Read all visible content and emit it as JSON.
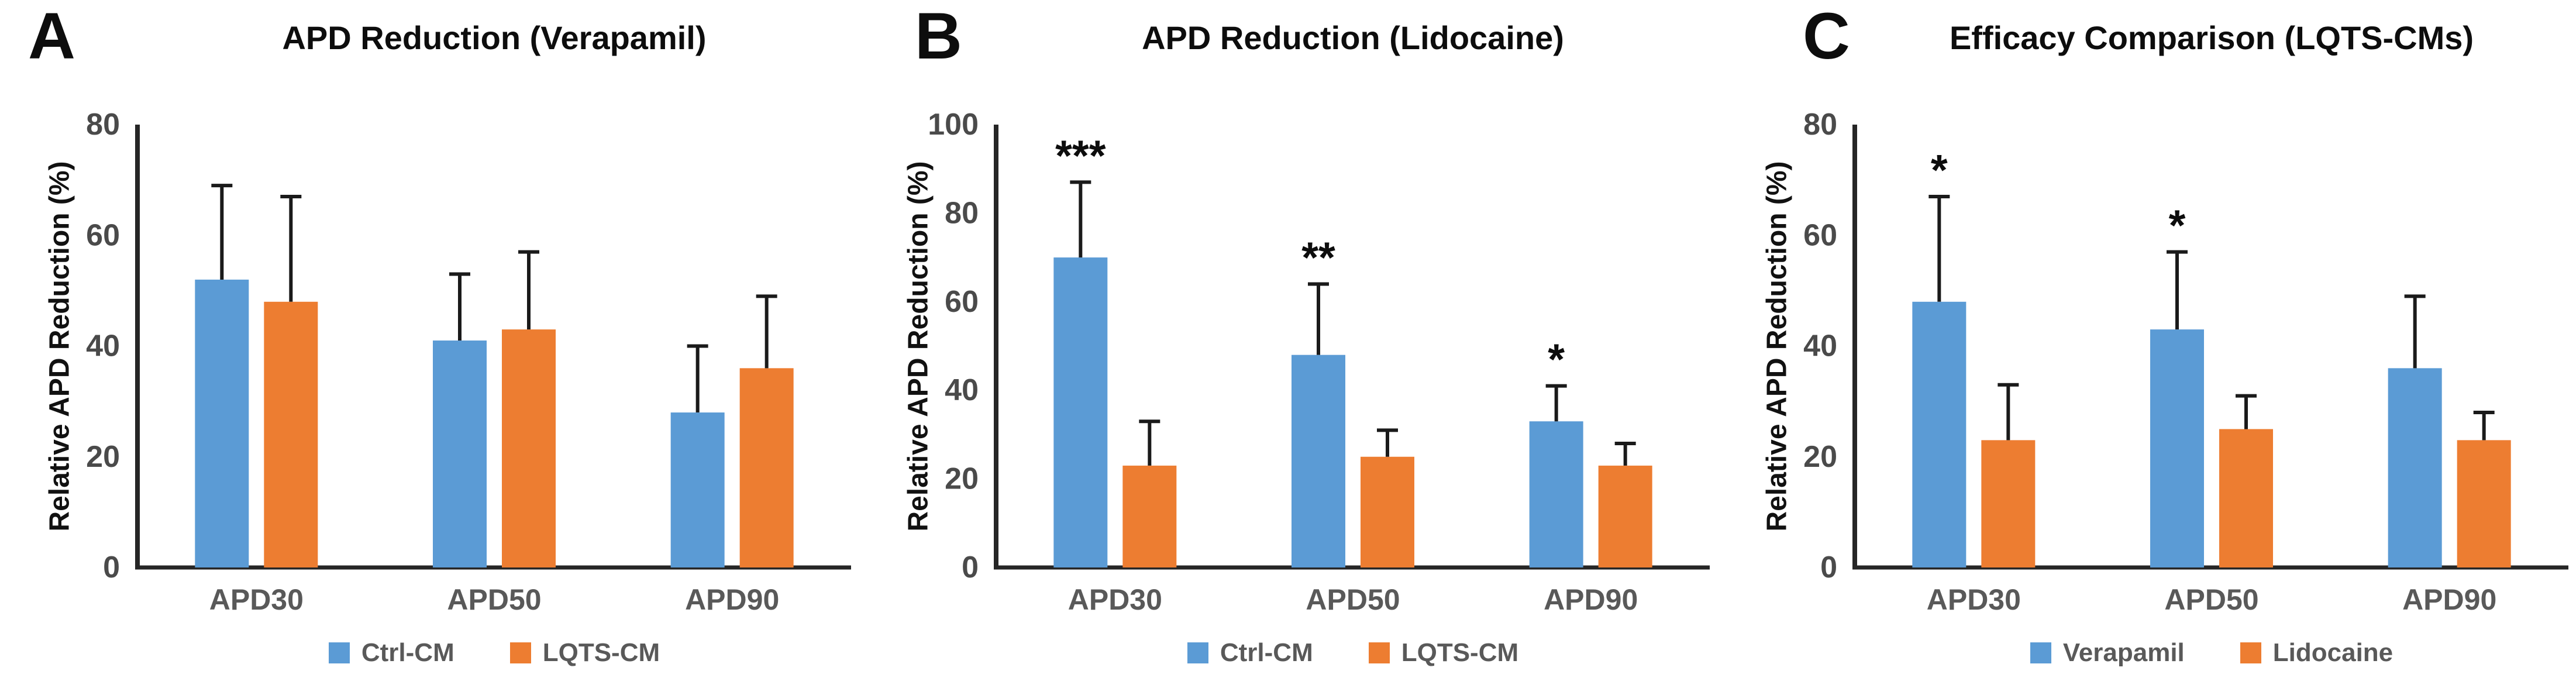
{
  "figure": {
    "background": "#ffffff"
  },
  "colors": {
    "series_blue": "#5B9BD5",
    "series_orange": "#ED7D31",
    "axis": "#262626",
    "error_bar": "#1a1a1a",
    "tick_text": "#4a4a4a",
    "label_text": "#595959",
    "title_text": "#0d0d0d"
  },
  "chart_data": [
    {
      "type": "bar",
      "panel_label": "A",
      "title": "APD Reduction (Verapamil)",
      "ylabel": "Relative APD Reduction (%)",
      "xlabel": "",
      "ylim": [
        0,
        80
      ],
      "yticks": [
        0,
        20,
        40,
        60,
        80
      ],
      "grid": "off",
      "legend_position": "bottom",
      "categories": [
        "APD30",
        "APD50",
        "APD90"
      ],
      "series": [
        {
          "name": "Ctrl-CM",
          "color": "#5B9BD5",
          "values": [
            52,
            41,
            28
          ],
          "errors_up": [
            17,
            12,
            12
          ]
        },
        {
          "name": "LQTS-CM",
          "color": "#ED7D31",
          "values": [
            48,
            43,
            36
          ],
          "errors_up": [
            19,
            14,
            13
          ]
        }
      ],
      "significance": [
        "",
        "",
        ""
      ]
    },
    {
      "type": "bar",
      "panel_label": "B",
      "title": "APD Reduction (Lidocaine)",
      "ylabel": "Relative APD Reduction (%)",
      "xlabel": "",
      "ylim": [
        0,
        100
      ],
      "yticks": [
        0,
        20,
        40,
        60,
        80,
        100
      ],
      "grid": "off",
      "legend_position": "bottom",
      "categories": [
        "APD30",
        "APD50",
        "APD90"
      ],
      "series": [
        {
          "name": "Ctrl-CM",
          "color": "#5B9BD5",
          "values": [
            70,
            48,
            33
          ],
          "errors_up": [
            17,
            16,
            8
          ]
        },
        {
          "name": "LQTS-CM",
          "color": "#ED7D31",
          "values": [
            23,
            25,
            23
          ],
          "errors_up": [
            10,
            6,
            5
          ]
        }
      ],
      "significance": [
        "***",
        "**",
        "*"
      ]
    },
    {
      "type": "bar",
      "panel_label": "C",
      "title": "Efficacy Comparison (LQTS-CMs)",
      "ylabel": "Relative APD Reduction (%)",
      "xlabel": "",
      "ylim": [
        0,
        80
      ],
      "yticks": [
        0,
        20,
        40,
        60,
        80
      ],
      "grid": "off",
      "legend_position": "bottom",
      "categories": [
        "APD30",
        "APD50",
        "APD90"
      ],
      "series": [
        {
          "name": "Verapamil",
          "color": "#5B9BD5",
          "values": [
            48,
            43,
            36
          ],
          "errors_up": [
            19,
            14,
            13
          ]
        },
        {
          "name": "Lidocaine",
          "color": "#ED7D31",
          "values": [
            23,
            25,
            23
          ],
          "errors_up": [
            10,
            6,
            5
          ]
        }
      ],
      "significance": [
        "*",
        "*",
        ""
      ]
    }
  ]
}
